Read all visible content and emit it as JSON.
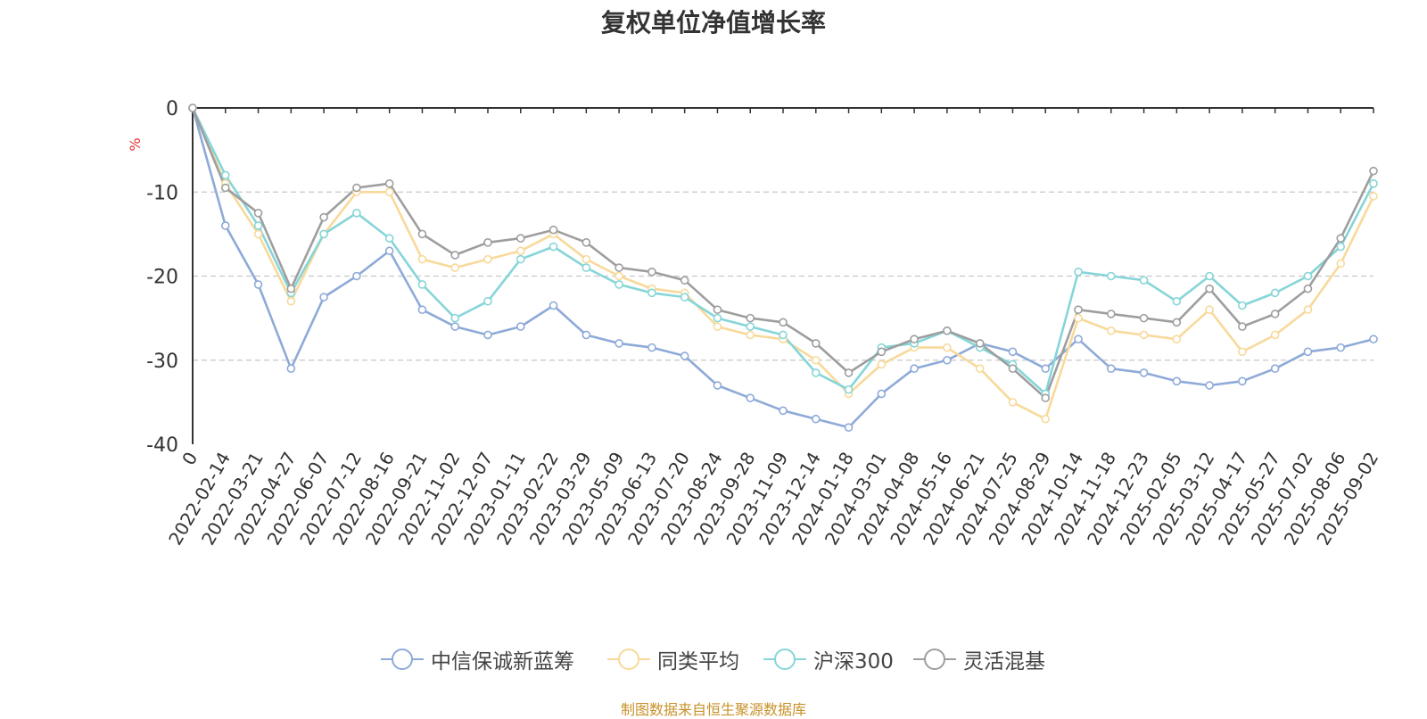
{
  "chart_data": {
    "type": "line",
    "title": "复权单位净值增长率",
    "ylabel": "%",
    "ylim": [
      -40,
      0
    ],
    "yticks": [
      0,
      -10,
      -20,
      -30,
      -40
    ],
    "grid": true,
    "legend_position": "bottom",
    "x_tick_labels": [
      "0",
      "2022-02-14",
      "2022-03-21",
      "2022-04-27",
      "2022-06-07",
      "2022-07-12",
      "2022-08-16",
      "2022-09-21",
      "2022-11-02",
      "2022-12-07",
      "2023-01-11",
      "2023-02-22",
      "2023-03-29",
      "2023-05-09",
      "2023-06-13",
      "2023-07-20",
      "2023-08-24",
      "2023-09-28",
      "2023-11-09",
      "2023-12-14",
      "2024-01-18",
      "2024-03-01",
      "2024-04-08",
      "2024-05-16",
      "2024-06-21",
      "2024-07-25",
      "2024-08-29",
      "2024-10-14",
      "2024-11-18",
      "2024-12-23",
      "2025-02-05",
      "2025-03-12",
      "2025-04-17",
      "2025-05-27",
      "2025-07-02",
      "2025-08-06",
      "2025-09-02"
    ],
    "x": [
      "0",
      "2022-02-14",
      "2022-03-21",
      "2022-04-27",
      "2022-06-07",
      "2022-07-12",
      "2022-08-16",
      "2022-09-21",
      "2022-11-02",
      "2022-12-07",
      "2023-01-11",
      "2023-02-22",
      "2023-03-29",
      "2023-05-09",
      "2023-06-13",
      "2023-07-20",
      "2023-08-24",
      "2023-09-28",
      "2023-11-09",
      "2023-12-14",
      "2024-01-18",
      "2024-03-01",
      "2024-04-08",
      "2024-05-16",
      "2024-06-21",
      "2024-07-25",
      "2024-08-29",
      "2024-10-14",
      "2024-11-18",
      "2024-12-23",
      "2025-02-05",
      "2025-03-12",
      "2025-04-17",
      "2025-05-27",
      "2025-07-02",
      "2025-08-06",
      "2025-09-02"
    ],
    "series": [
      {
        "name": "中信保诚新蓝筹",
        "color": "#8eaad8",
        "values": [
          0,
          -14,
          -21,
          -31,
          -22.5,
          -20,
          -17,
          -24,
          -26,
          -27,
          -26,
          -23.5,
          -27,
          -28,
          -28.5,
          -29.5,
          -33,
          -34.5,
          -36,
          -37,
          -38,
          -34,
          -31,
          -30,
          -28,
          -29,
          -31,
          -27.5,
          -31,
          -31.5,
          -32.5,
          -33,
          -32.5,
          -31,
          -29,
          -28.5,
          -27.5
        ]
      },
      {
        "name": "同类平均",
        "color": "#f8d99a",
        "values": [
          0,
          -9,
          -15,
          -23,
          -15,
          -10,
          -10,
          -18,
          -19,
          -18,
          -17,
          -15,
          -18,
          -20,
          -21.5,
          -22,
          -26,
          -27,
          -27.5,
          -30,
          -34,
          -30.5,
          -28.5,
          -28.5,
          -31,
          -35,
          -37,
          -25,
          -26.5,
          -27,
          -27.5,
          -24,
          -29,
          -27,
          -24,
          -18.5,
          -10.5
        ]
      },
      {
        "name": "沪深300",
        "color": "#86d5d8",
        "values": [
          0,
          -8,
          -14,
          -22,
          -15,
          -12.5,
          -15.5,
          -21,
          -25,
          -23,
          -18,
          -16.5,
          -19,
          -21,
          -22,
          -22.5,
          -25,
          -26,
          -27,
          -31.5,
          -33.5,
          -28.5,
          -28,
          -26.5,
          -28.5,
          -30.5,
          -34,
          -19.5,
          -20,
          -20.5,
          -23,
          -20,
          -23.5,
          -22,
          -20,
          -16.5,
          -9
        ]
      },
      {
        "name": "灵活混基",
        "color": "#9e9e9e",
        "values": [
          0,
          -9.5,
          -12.5,
          -21.5,
          -13,
          -9.5,
          -9,
          -15,
          -17.5,
          -16,
          -15.5,
          -14.5,
          -16,
          -19,
          -19.5,
          -20.5,
          -24,
          -25,
          -25.5,
          -28,
          -31.5,
          -29,
          -27.5,
          -26.5,
          -28,
          -31,
          -34.5,
          -24,
          -24.5,
          -25,
          -25.5,
          -21.5,
          -26,
          -24.5,
          -21.5,
          -15.5,
          -7.5
        ]
      }
    ]
  },
  "source_note": "制图数据来自恒生聚源数据库"
}
